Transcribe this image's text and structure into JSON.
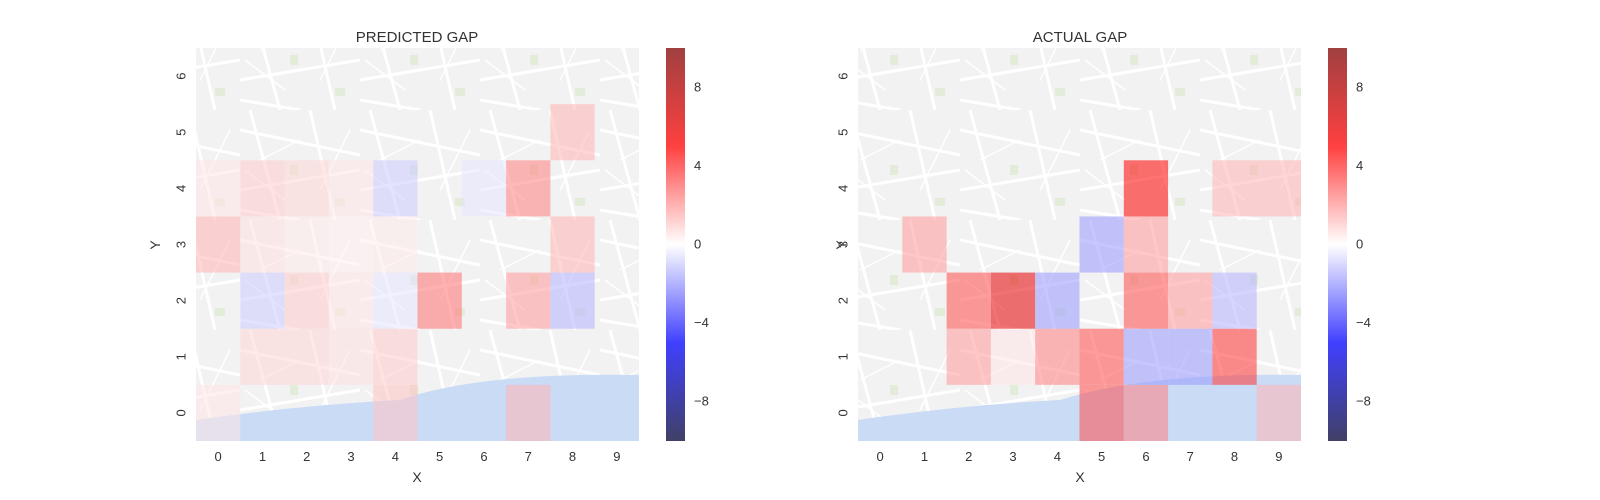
{
  "chart_data": [
    {
      "type": "heatmap",
      "title": "PREDICTED GAP",
      "xlabel": "X",
      "ylabel": "Y",
      "x_ticks": [
        "0",
        "1",
        "2",
        "3",
        "4",
        "5",
        "6",
        "7",
        "8",
        "9"
      ],
      "y_ticks": [
        "0",
        "1",
        "2",
        "3",
        "4",
        "5",
        "6"
      ],
      "colorbar": {
        "range": [
          -10,
          10
        ],
        "ticks": [
          "8",
          "4",
          "0",
          "−4",
          "−8"
        ],
        "tick_values": [
          8,
          4,
          0,
          -4,
          -8
        ],
        "colormap": "seismic"
      },
      "values": [
        [
          0.5,
          0,
          0,
          0,
          1.2,
          0,
          0,
          1.5,
          0,
          0
        ],
        [
          0,
          0.8,
          0.8,
          0.6,
          1.0,
          0,
          0,
          0,
          0,
          0
        ],
        [
          0,
          -1.0,
          1.0,
          0.5,
          -0.5,
          2.8,
          0,
          2.0,
          -1.5,
          0
        ],
        [
          1.5,
          0.6,
          0.4,
          0.3,
          0.4,
          0,
          0,
          0,
          1.5,
          0
        ],
        [
          0.5,
          1.0,
          0.8,
          0.5,
          -1.0,
          0,
          -0.5,
          2.5,
          0,
          0
        ],
        [
          0,
          0,
          0,
          0,
          0,
          0,
          0,
          0,
          1.5,
          0
        ],
        [
          0,
          0,
          0,
          0,
          0,
          0,
          0,
          0,
          0,
          0
        ]
      ]
    },
    {
      "type": "heatmap",
      "title": "ACTUAL GAP",
      "xlabel": "X",
      "ylabel": "Y",
      "x_ticks": [
        "0",
        "1",
        "2",
        "3",
        "4",
        "5",
        "6",
        "7",
        "8",
        "9"
      ],
      "y_ticks": [
        "0",
        "1",
        "2",
        "3",
        "4",
        "5",
        "6"
      ],
      "colorbar": {
        "range": [
          -10,
          10
        ],
        "ticks": [
          "8",
          "4",
          "0",
          "−4",
          "−8"
        ],
        "tick_values": [
          8,
          4,
          0,
          -4,
          -8
        ],
        "colormap": "seismic"
      },
      "values": [
        [
          0,
          0,
          0,
          0,
          0,
          3.5,
          2.5,
          0,
          0,
          1.5
        ],
        [
          0,
          0,
          2.0,
          0.5,
          2.5,
          3.5,
          -2.0,
          -2.0,
          4.0,
          0
        ],
        [
          0,
          0,
          3.5,
          6.0,
          -2.0,
          0,
          3.5,
          2.0,
          -1.5,
          0
        ],
        [
          0,
          2.0,
          0,
          0,
          0,
          -2.0,
          2.0,
          0,
          0,
          0
        ],
        [
          0,
          0,
          0,
          0,
          0,
          0,
          5.0,
          0,
          1.5,
          1.5
        ],
        [
          0,
          0,
          0,
          0,
          0,
          0,
          0,
          0,
          0,
          0
        ],
        [
          0,
          0,
          0,
          0,
          0,
          0,
          0,
          0,
          0,
          0
        ]
      ]
    }
  ]
}
